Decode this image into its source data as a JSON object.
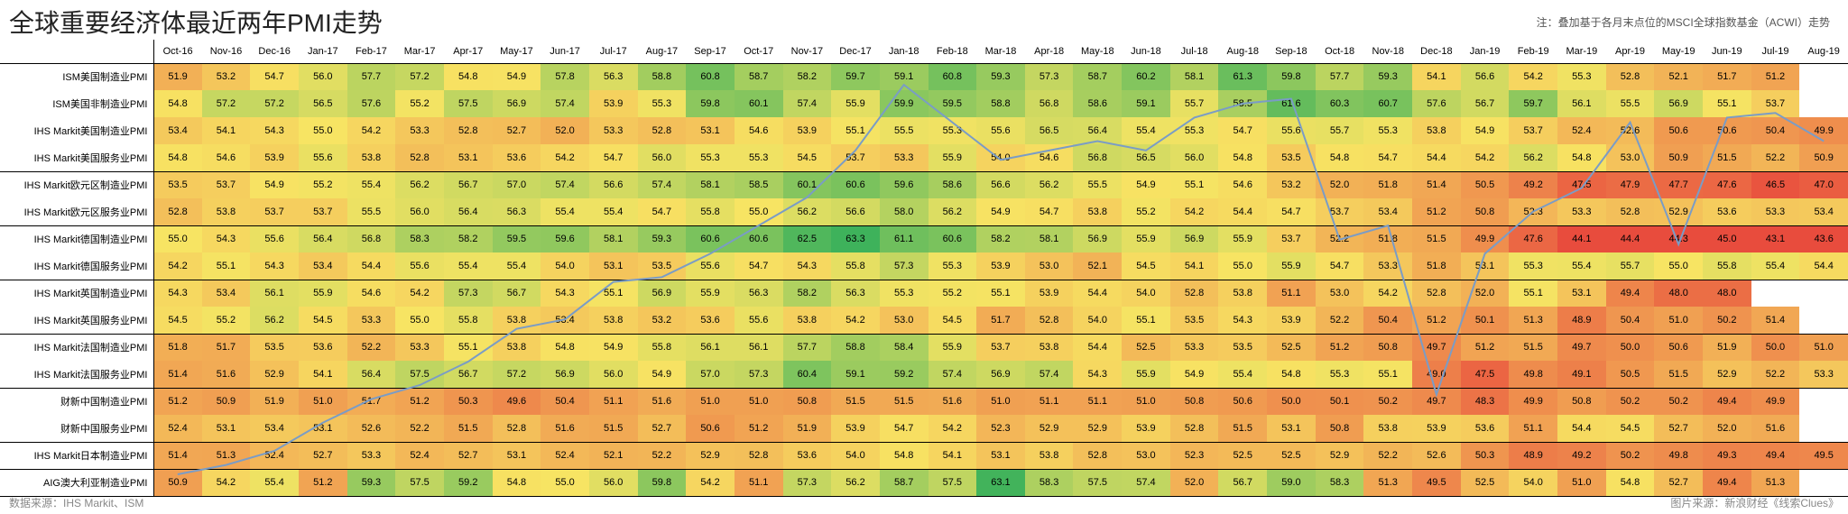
{
  "title": "全球重要经济体最近两年PMI走势",
  "note": "注：叠加基于各月末点位的MSCI全球指数基金（ACWI）走势",
  "footerLeft": "数据来源：IHS Markit、ISM",
  "footerRight": "图片来源：新浪财经《线索Clues》",
  "months": [
    "Oct-16",
    "Nov-16",
    "Dec-16",
    "Jan-17",
    "Feb-17",
    "Mar-17",
    "Apr-17",
    "May-17",
    "Jun-17",
    "Jul-17",
    "Aug-17",
    "Sep-17",
    "Oct-17",
    "Nov-17",
    "Dec-17",
    "Jan-18",
    "Feb-18",
    "Mar-18",
    "Apr-18",
    "May-18",
    "Jun-18",
    "Jul-18",
    "Aug-18",
    "Sep-18",
    "Oct-18",
    "Nov-18",
    "Dec-18",
    "Jan-19",
    "Feb-19",
    "Mar-19",
    "Apr-19",
    "May-19",
    "Jun-19",
    "Jul-19",
    "Aug-19"
  ],
  "rowLabelColWidth": 170,
  "colorScale": {
    "min": 46,
    "mid": 55,
    "max": 64,
    "lowColor": "#e84c3d",
    "midColor": "#f7e463",
    "highColor": "#2eae5a"
  },
  "series": [
    {
      "label": "ISM美国制造业PMI",
      "sep": false,
      "vals": [
        51.9,
        53.2,
        54.7,
        56.0,
        57.7,
        57.2,
        54.8,
        54.9,
        57.8,
        56.3,
        58.8,
        60.8,
        58.7,
        58.2,
        59.7,
        59.1,
        60.8,
        59.3,
        57.3,
        58.7,
        60.2,
        58.1,
        61.3,
        59.8,
        57.7,
        59.3,
        54.1,
        56.6,
        54.2,
        55.3,
        52.8,
        52.1,
        51.7,
        51.2,
        null
      ]
    },
    {
      "label": "ISM美国非制造业PMI",
      "sep": false,
      "vals": [
        54.8,
        57.2,
        57.2,
        56.5,
        57.6,
        55.2,
        57.5,
        56.9,
        57.4,
        53.9,
        55.3,
        59.8,
        60.1,
        57.4,
        55.9,
        59.9,
        59.5,
        58.8,
        56.8,
        58.6,
        59.1,
        55.7,
        58.5,
        61.6,
        60.3,
        60.7,
        57.6,
        56.7,
        59.7,
        56.1,
        55.5,
        56.9,
        55.1,
        53.7,
        null
      ]
    },
    {
      "label": "IHS Markit美国制造业PMI",
      "sep": false,
      "vals": [
        53.4,
        54.1,
        54.3,
        55.0,
        54.2,
        53.3,
        52.8,
        52.7,
        52.0,
        53.3,
        52.8,
        53.1,
        54.6,
        53.9,
        55.1,
        55.5,
        55.3,
        55.6,
        56.5,
        56.4,
        55.4,
        55.3,
        54.7,
        55.6,
        55.7,
        55.3,
        53.8,
        54.9,
        53.7,
        52.4,
        52.6,
        50.6,
        50.6,
        50.4,
        49.9
      ]
    },
    {
      "label": "IHS Markit美国服务业PMI",
      "sep": true,
      "vals": [
        54.8,
        54.6,
        53.9,
        55.6,
        53.8,
        52.8,
        53.1,
        53.6,
        54.2,
        54.7,
        56.0,
        55.3,
        55.3,
        54.5,
        53.7,
        53.3,
        55.9,
        54.0,
        54.6,
        56.8,
        56.5,
        56.0,
        54.8,
        53.5,
        54.8,
        54.7,
        54.4,
        54.2,
        56.2,
        54.8,
        53.0,
        50.9,
        51.5,
        52.2,
        50.9
      ]
    },
    {
      "label": "IHS Markit欧元区制造业PMI",
      "sep": false,
      "vals": [
        53.5,
        53.7,
        54.9,
        55.2,
        55.4,
        56.2,
        56.7,
        57.0,
        57.4,
        56.6,
        57.4,
        58.1,
        58.5,
        60.1,
        60.6,
        59.6,
        58.6,
        56.6,
        56.2,
        55.5,
        54.9,
        55.1,
        54.6,
        53.2,
        52.0,
        51.8,
        51.4,
        50.5,
        49.2,
        47.5,
        47.9,
        47.7,
        47.6,
        46.5,
        47.0
      ]
    },
    {
      "label": "IHS Markit欧元区服务业PMI",
      "sep": true,
      "vals": [
        52.8,
        53.8,
        53.7,
        53.7,
        55.5,
        56.0,
        56.4,
        56.3,
        55.4,
        55.4,
        54.7,
        55.8,
        55.0,
        56.2,
        56.6,
        58.0,
        56.2,
        54.9,
        54.7,
        53.8,
        55.2,
        54.2,
        54.4,
        54.7,
        53.7,
        53.4,
        51.2,
        50.8,
        52.3,
        53.3,
        52.8,
        52.9,
        53.6,
        53.3,
        53.4
      ]
    },
    {
      "label": "IHS Markit德国制造业PMI",
      "sep": false,
      "vals": [
        55.0,
        54.3,
        55.6,
        56.4,
        56.8,
        58.3,
        58.2,
        59.5,
        59.6,
        58.1,
        59.3,
        60.6,
        60.6,
        62.5,
        63.3,
        61.1,
        60.6,
        58.2,
        58.1,
        56.9,
        55.9,
        56.9,
        55.9,
        53.7,
        52.2,
        51.8,
        51.5,
        49.9,
        47.6,
        44.1,
        44.4,
        44.3,
        45.0,
        43.1,
        43.6
      ]
    },
    {
      "label": "IHS Markit德国服务业PMI",
      "sep": true,
      "vals": [
        54.2,
        55.1,
        54.3,
        53.4,
        54.4,
        55.6,
        55.4,
        55.4,
        54.0,
        53.1,
        53.5,
        55.6,
        54.7,
        54.3,
        55.8,
        57.3,
        55.3,
        53.9,
        53.0,
        52.1,
        54.5,
        54.1,
        55.0,
        55.9,
        54.7,
        53.3,
        51.8,
        53.1,
        55.3,
        55.4,
        55.7,
        55.0,
        55.8,
        55.4,
        54.4
      ]
    },
    {
      "label": "IHS Markit英国制造业PMI",
      "sep": false,
      "vals": [
        54.3,
        53.4,
        56.1,
        55.9,
        54.6,
        54.2,
        57.3,
        56.7,
        54.3,
        55.1,
        56.9,
        55.9,
        56.3,
        58.2,
        56.3,
        55.3,
        55.2,
        55.1,
        53.9,
        54.4,
        54.0,
        52.8,
        53.8,
        51.1,
        53.0,
        54.2,
        52.8,
        52.0,
        55.1,
        53.1,
        49.4,
        48.0,
        48.0,
        null,
        null
      ]
    },
    {
      "label": "IHS Markit英国服务业PMI",
      "sep": true,
      "vals": [
        54.5,
        55.2,
        56.2,
        54.5,
        53.3,
        55.0,
        55.8,
        53.8,
        53.4,
        53.8,
        53.2,
        53.6,
        55.6,
        53.8,
        54.2,
        53.0,
        54.5,
        51.7,
        52.8,
        54.0,
        55.1,
        53.5,
        54.3,
        53.9,
        52.2,
        50.4,
        51.2,
        50.1,
        51.3,
        48.9,
        50.4,
        51.0,
        50.2,
        51.4,
        null
      ]
    },
    {
      "label": "IHS Markit法国制造业PMI",
      "sep": false,
      "vals": [
        51.8,
        51.7,
        53.5,
        53.6,
        52.2,
        53.3,
        55.1,
        53.8,
        54.8,
        54.9,
        55.8,
        56.1,
        56.1,
        57.7,
        58.8,
        58.4,
        55.9,
        53.7,
        53.8,
        54.4,
        52.5,
        53.3,
        53.5,
        52.5,
        51.2,
        50.8,
        49.7,
        51.2,
        51.5,
        49.7,
        50.0,
        50.6,
        51.9,
        50.0,
        51.0
      ]
    },
    {
      "label": "IHS Markit法国服务业PMI",
      "sep": true,
      "vals": [
        51.4,
        51.6,
        52.9,
        54.1,
        56.4,
        57.5,
        56.7,
        57.2,
        56.9,
        56.0,
        54.9,
        57.0,
        57.3,
        60.4,
        59.1,
        59.2,
        57.4,
        56.9,
        57.4,
        54.3,
        55.9,
        54.9,
        55.4,
        54.8,
        55.3,
        55.1,
        49.0,
        47.5,
        49.8,
        49.1,
        50.5,
        51.5,
        52.9,
        52.2,
        53.3
      ]
    },
    {
      "label": "财新中国制造业PMI",
      "sep": false,
      "vals": [
        51.2,
        50.9,
        51.9,
        51.0,
        51.7,
        51.2,
        50.3,
        49.6,
        50.4,
        51.1,
        51.6,
        51.0,
        51.0,
        50.8,
        51.5,
        51.5,
        51.6,
        51.0,
        51.1,
        51.1,
        51.0,
        50.8,
        50.6,
        50.0,
        50.1,
        50.2,
        49.7,
        48.3,
        49.9,
        50.8,
        50.2,
        50.2,
        49.4,
        49.9,
        null
      ]
    },
    {
      "label": "财新中国服务业PMI",
      "sep": true,
      "vals": [
        52.4,
        53.1,
        53.4,
        53.1,
        52.6,
        52.2,
        51.5,
        52.8,
        51.6,
        51.5,
        52.7,
        50.6,
        51.2,
        51.9,
        53.9,
        54.7,
        54.2,
        52.3,
        52.9,
        52.9,
        53.9,
        52.8,
        51.5,
        53.1,
        50.8,
        53.8,
        53.9,
        53.6,
        51.1,
        54.4,
        54.5,
        52.7,
        52.0,
        51.6,
        null
      ]
    },
    {
      "label": "IHS Markit日本制造业PMI",
      "sep": true,
      "vals": [
        51.4,
        51.3,
        52.4,
        52.7,
        53.3,
        52.4,
        52.7,
        53.1,
        52.4,
        52.1,
        52.2,
        52.9,
        52.8,
        53.6,
        54.0,
        54.8,
        54.1,
        53.1,
        53.8,
        52.8,
        53.0,
        52.3,
        52.5,
        52.5,
        52.9,
        52.2,
        52.6,
        50.3,
        48.9,
        49.2,
        50.2,
        49.8,
        49.3,
        49.4,
        49.5
      ]
    },
    {
      "label": "AIG澳大利亚制造业PMI",
      "sep": true,
      "vals": [
        50.9,
        54.2,
        55.4,
        51.2,
        59.3,
        57.5,
        59.2,
        54.8,
        55.0,
        56.0,
        59.8,
        54.2,
        51.1,
        57.3,
        56.2,
        58.7,
        57.5,
        63.1,
        58.3,
        57.5,
        57.4,
        52.0,
        56.7,
        59.0,
        58.3,
        51.3,
        49.5,
        52.5,
        54.0,
        51.0,
        54.8,
        52.7,
        49.4,
        51.3,
        null
      ]
    }
  ],
  "acwiLine": [
    408,
    410,
    413,
    419,
    424,
    427,
    432,
    439,
    441,
    449,
    450,
    455,
    461,
    467,
    477,
    491,
    483,
    475,
    477,
    479,
    477,
    484,
    487,
    488,
    458,
    461,
    425,
    455,
    464,
    469,
    483,
    457,
    484,
    485,
    479
  ]
}
